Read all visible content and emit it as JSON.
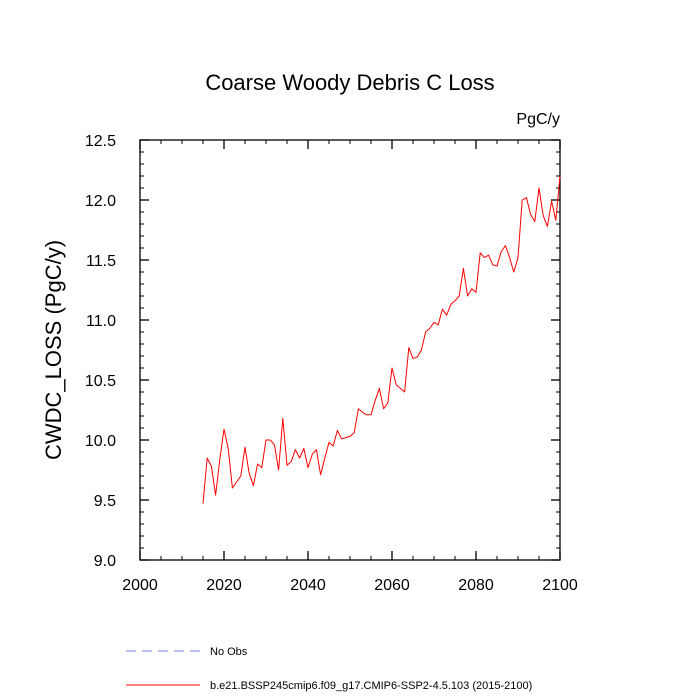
{
  "chart_data": {
    "type": "line",
    "title": "Coarse Woody Debris C Loss",
    "units_label": "PgC/y",
    "xlabel": "",
    "ylabel": "CWDC_LOSS  (PgC/y)",
    "xlim": [
      2000,
      2100
    ],
    "ylim": [
      9.0,
      12.5
    ],
    "x_ticks": [
      2000,
      2020,
      2040,
      2060,
      2080,
      2100
    ],
    "y_ticks": [
      9.0,
      9.5,
      10.0,
      10.5,
      11.0,
      11.5,
      12.0,
      12.5
    ],
    "y_tick_labels": [
      "9.0",
      "9.5",
      "10.0",
      "10.5",
      "11.0",
      "11.5",
      "12.0",
      "12.5"
    ],
    "grid": false,
    "legend_position": "bottom-left",
    "series": [
      {
        "name": "b.e21.BSSP245cmip6.f09_g17.CMIP6-SSP2-4.5.103 (2015-2100)",
        "color": "#ff0000",
        "style": "solid",
        "x": [
          2015,
          2016,
          2017,
          2018,
          2019,
          2020,
          2021,
          2022,
          2023,
          2024,
          2025,
          2026,
          2027,
          2028,
          2029,
          2030,
          2031,
          2032,
          2033,
          2034,
          2035,
          2036,
          2037,
          2038,
          2039,
          2040,
          2041,
          2042,
          2043,
          2044,
          2045,
          2046,
          2047,
          2048,
          2049,
          2050,
          2051,
          2052,
          2053,
          2054,
          2055,
          2056,
          2057,
          2058,
          2059,
          2060,
          2061,
          2062,
          2063,
          2064,
          2065,
          2066,
          2067,
          2068,
          2069,
          2070,
          2071,
          2072,
          2073,
          2074,
          2075,
          2076,
          2077,
          2078,
          2079,
          2080,
          2081,
          2082,
          2083,
          2084,
          2085,
          2086,
          2087,
          2088,
          2089,
          2090,
          2091,
          2092,
          2093,
          2094,
          2095,
          2096,
          2097,
          2098,
          2099,
          2100
        ],
        "y": [
          9.47,
          9.85,
          9.78,
          9.54,
          9.84,
          10.09,
          9.93,
          9.6,
          9.65,
          9.7,
          9.94,
          9.72,
          9.62,
          9.8,
          9.77,
          10.0,
          10.0,
          9.96,
          9.75,
          10.18,
          9.79,
          9.82,
          9.92,
          9.85,
          9.93,
          9.77,
          9.88,
          9.92,
          9.71,
          9.85,
          9.98,
          9.95,
          10.08,
          10.01,
          10.02,
          10.03,
          10.06,
          10.26,
          10.23,
          10.21,
          10.21,
          10.33,
          10.43,
          10.26,
          10.31,
          10.6,
          10.46,
          10.43,
          10.4,
          10.77,
          10.68,
          10.69,
          10.75,
          10.9,
          10.93,
          10.98,
          10.96,
          11.09,
          11.04,
          11.13,
          11.16,
          11.2,
          11.43,
          11.2,
          11.26,
          11.23,
          11.56,
          11.52,
          11.54,
          11.46,
          11.45,
          11.57,
          11.62,
          11.52,
          11.4,
          11.52,
          12.0,
          12.02,
          11.88,
          11.82,
          12.1,
          11.87,
          11.78,
          11.99,
          11.83,
          12.2
        ]
      },
      {
        "name": "No Obs",
        "color": "#7f7fff",
        "style": "dashed",
        "x": [],
        "y": []
      }
    ]
  }
}
